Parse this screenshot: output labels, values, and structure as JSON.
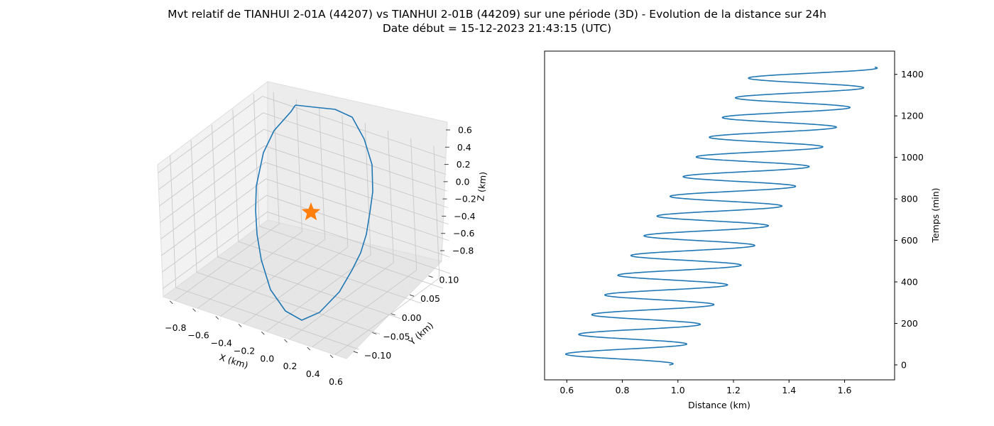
{
  "figure": {
    "title_line1": "Mvt relatif de TIANHUI 2-01A (44207) vs TIANHUI 2-01B (44209) sur une période (3D) - Evolution de la distance sur 24h",
    "title_line2": "Date début = 15-12-2023 21:43:15 (UTC)"
  },
  "chart_data": [
    {
      "type": "line3d",
      "xlabel": "X (km)",
      "ylabel": "Y (km)",
      "zlabel": "Z (km)",
      "x_ticks": [
        "−0.8",
        "−0.6",
        "−0.4",
        "−0.2",
        "0.0",
        "0.2",
        "0.4",
        "0.6"
      ],
      "y_ticks": [
        "−0.10",
        "−0.05",
        "0.00",
        "0.05",
        "0.10"
      ],
      "z_ticks": [
        "0.6",
        "0.4",
        "0.2",
        "0.0",
        "−0.2",
        "−0.4",
        "−0.6",
        "−0.8"
      ],
      "grid": true,
      "series": [
        {
          "color": "#1f77b4",
          "description_points_xyz": [
            [
              -0.95,
              0.03,
              0.3
            ],
            [
              -0.9,
              0.04,
              0.55
            ],
            [
              -0.75,
              0.06,
              0.7
            ],
            [
              -0.55,
              0.08,
              0.8
            ],
            [
              -0.35,
              0.09,
              0.8
            ],
            [
              -0.15,
              0.1,
              0.72
            ],
            [
              0.05,
              0.1,
              0.55
            ],
            [
              0.2,
              0.09,
              0.35
            ],
            [
              0.3,
              0.07,
              0.1
            ],
            [
              0.35,
              0.05,
              -0.15
            ],
            [
              0.35,
              0.02,
              -0.4
            ],
            [
              0.32,
              -0.01,
              -0.6
            ],
            [
              0.25,
              -0.04,
              -0.75
            ],
            [
              0.15,
              -0.06,
              -0.85
            ],
            [
              0.0,
              -0.08,
              -0.92
            ],
            [
              -0.2,
              -0.09,
              -0.9
            ],
            [
              -0.4,
              -0.08,
              -0.78
            ],
            [
              -0.6,
              -0.06,
              -0.55
            ],
            [
              -0.78,
              -0.03,
              -0.25
            ],
            [
              -0.9,
              0.0,
              0.05
            ],
            [
              -0.95,
              0.03,
              0.3
            ]
          ]
        }
      ],
      "marker": {
        "shape": "star",
        "color": "#ff7f0e",
        "x": 0,
        "y": 0,
        "z": 0
      }
    },
    {
      "type": "line",
      "xlabel": "Distance (km)",
      "ylabel": "Temps (min)",
      "xlim": [
        0.52,
        1.78
      ],
      "ylim": [
        -72,
        1512
      ],
      "x_ticks": [
        0.6,
        0.8,
        1.0,
        1.2,
        1.4,
        1.6
      ],
      "y_ticks": [
        0,
        200,
        400,
        600,
        800,
        1000,
        1200,
        1400
      ],
      "series": [
        {
          "color": "#1f77b4",
          "model": "oscillation",
          "period_min": 95,
          "t_start": 0,
          "t_end": 1435,
          "d_start": 0.95,
          "d_end_max": 1.72,
          "min_start": 0.57,
          "max_start": 0.98,
          "min_end": 1.28,
          "max_end": 1.72
        }
      ]
    }
  ]
}
